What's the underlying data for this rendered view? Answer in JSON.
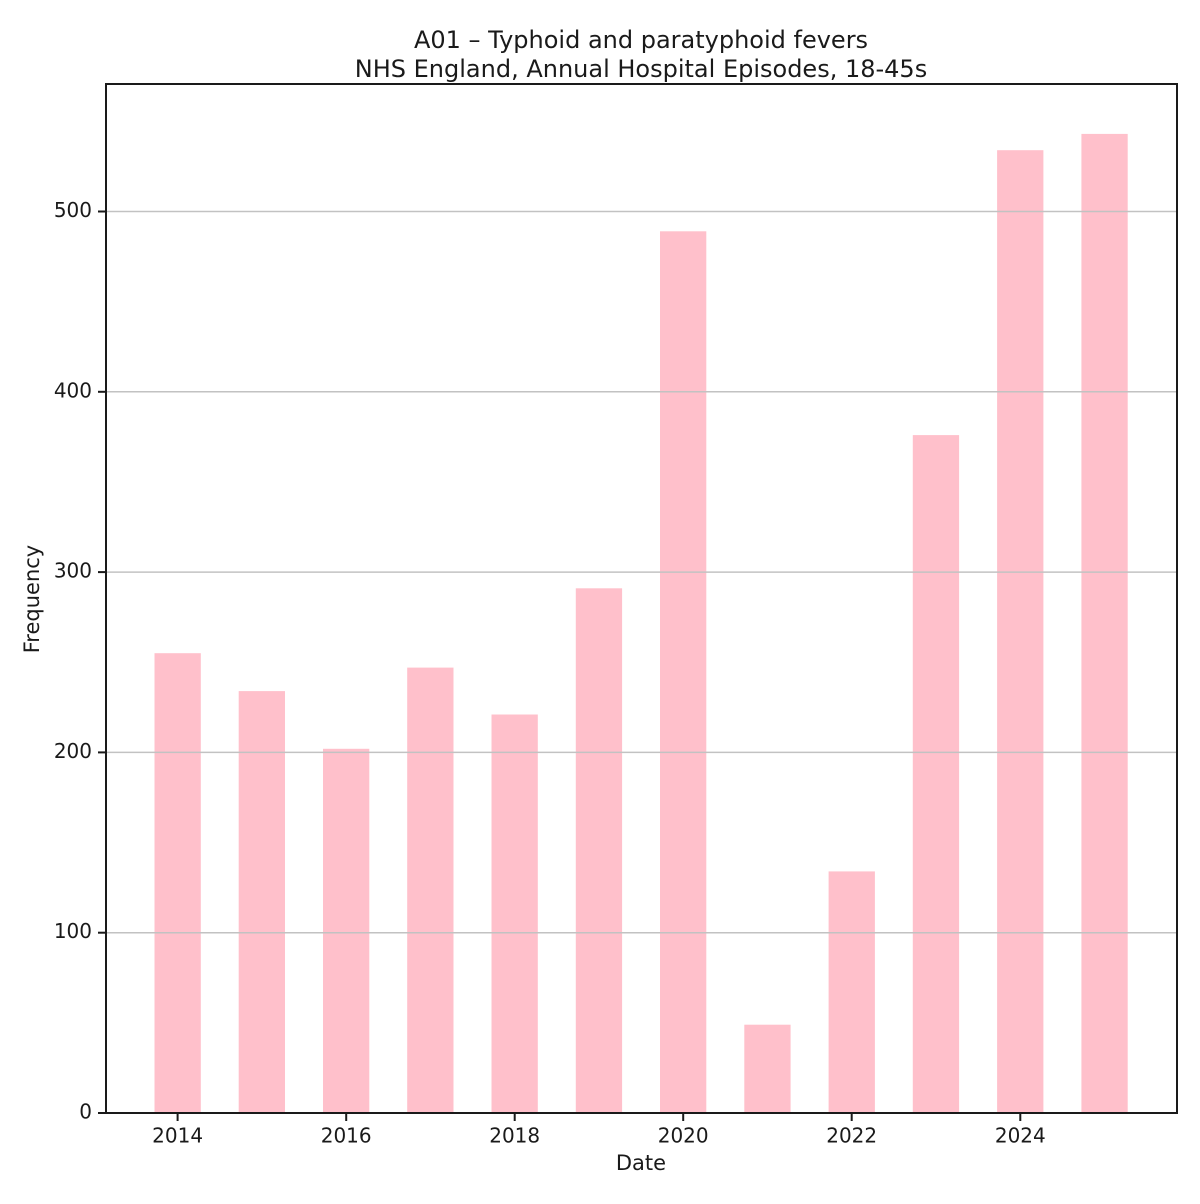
{
  "figure": {
    "title": "A01 – Typhoid and paratyphoid fevers",
    "subtitle": "NHS England, Annual Hospital Episodes, 18-45s"
  },
  "chart_data": {
    "type": "bar",
    "title": "A01 – Typhoid and paratyphoid fevers",
    "subtitle": "NHS England, Annual Hospital Episodes, 18-45s",
    "xlabel": "Date",
    "ylabel": "Frequency",
    "categories": [
      2014,
      2015,
      2016,
      2017,
      2018,
      2019,
      2020,
      2021,
      2022,
      2023,
      2024,
      2025
    ],
    "values": [
      255,
      234,
      202,
      247,
      221,
      291,
      489,
      49,
      134,
      376,
      534,
      543
    ],
    "xticks": [
      2014,
      2016,
      2018,
      2020,
      2022,
      2024
    ],
    "yticks": [
      0,
      100,
      200,
      300,
      400,
      500
    ],
    "xlim": [
      2013.15,
      2025.86
    ],
    "ylim": [
      0,
      570.7
    ],
    "bar_width_years": 0.55,
    "grid": true,
    "grid_on_top_of_bars": true,
    "legend": "none",
    "colors": {
      "bar": "#ffc0cb",
      "grid": "#c2c2c2",
      "spine": "#1a1a1a",
      "text": "#1a1a1a",
      "background": "#ffffff"
    }
  }
}
